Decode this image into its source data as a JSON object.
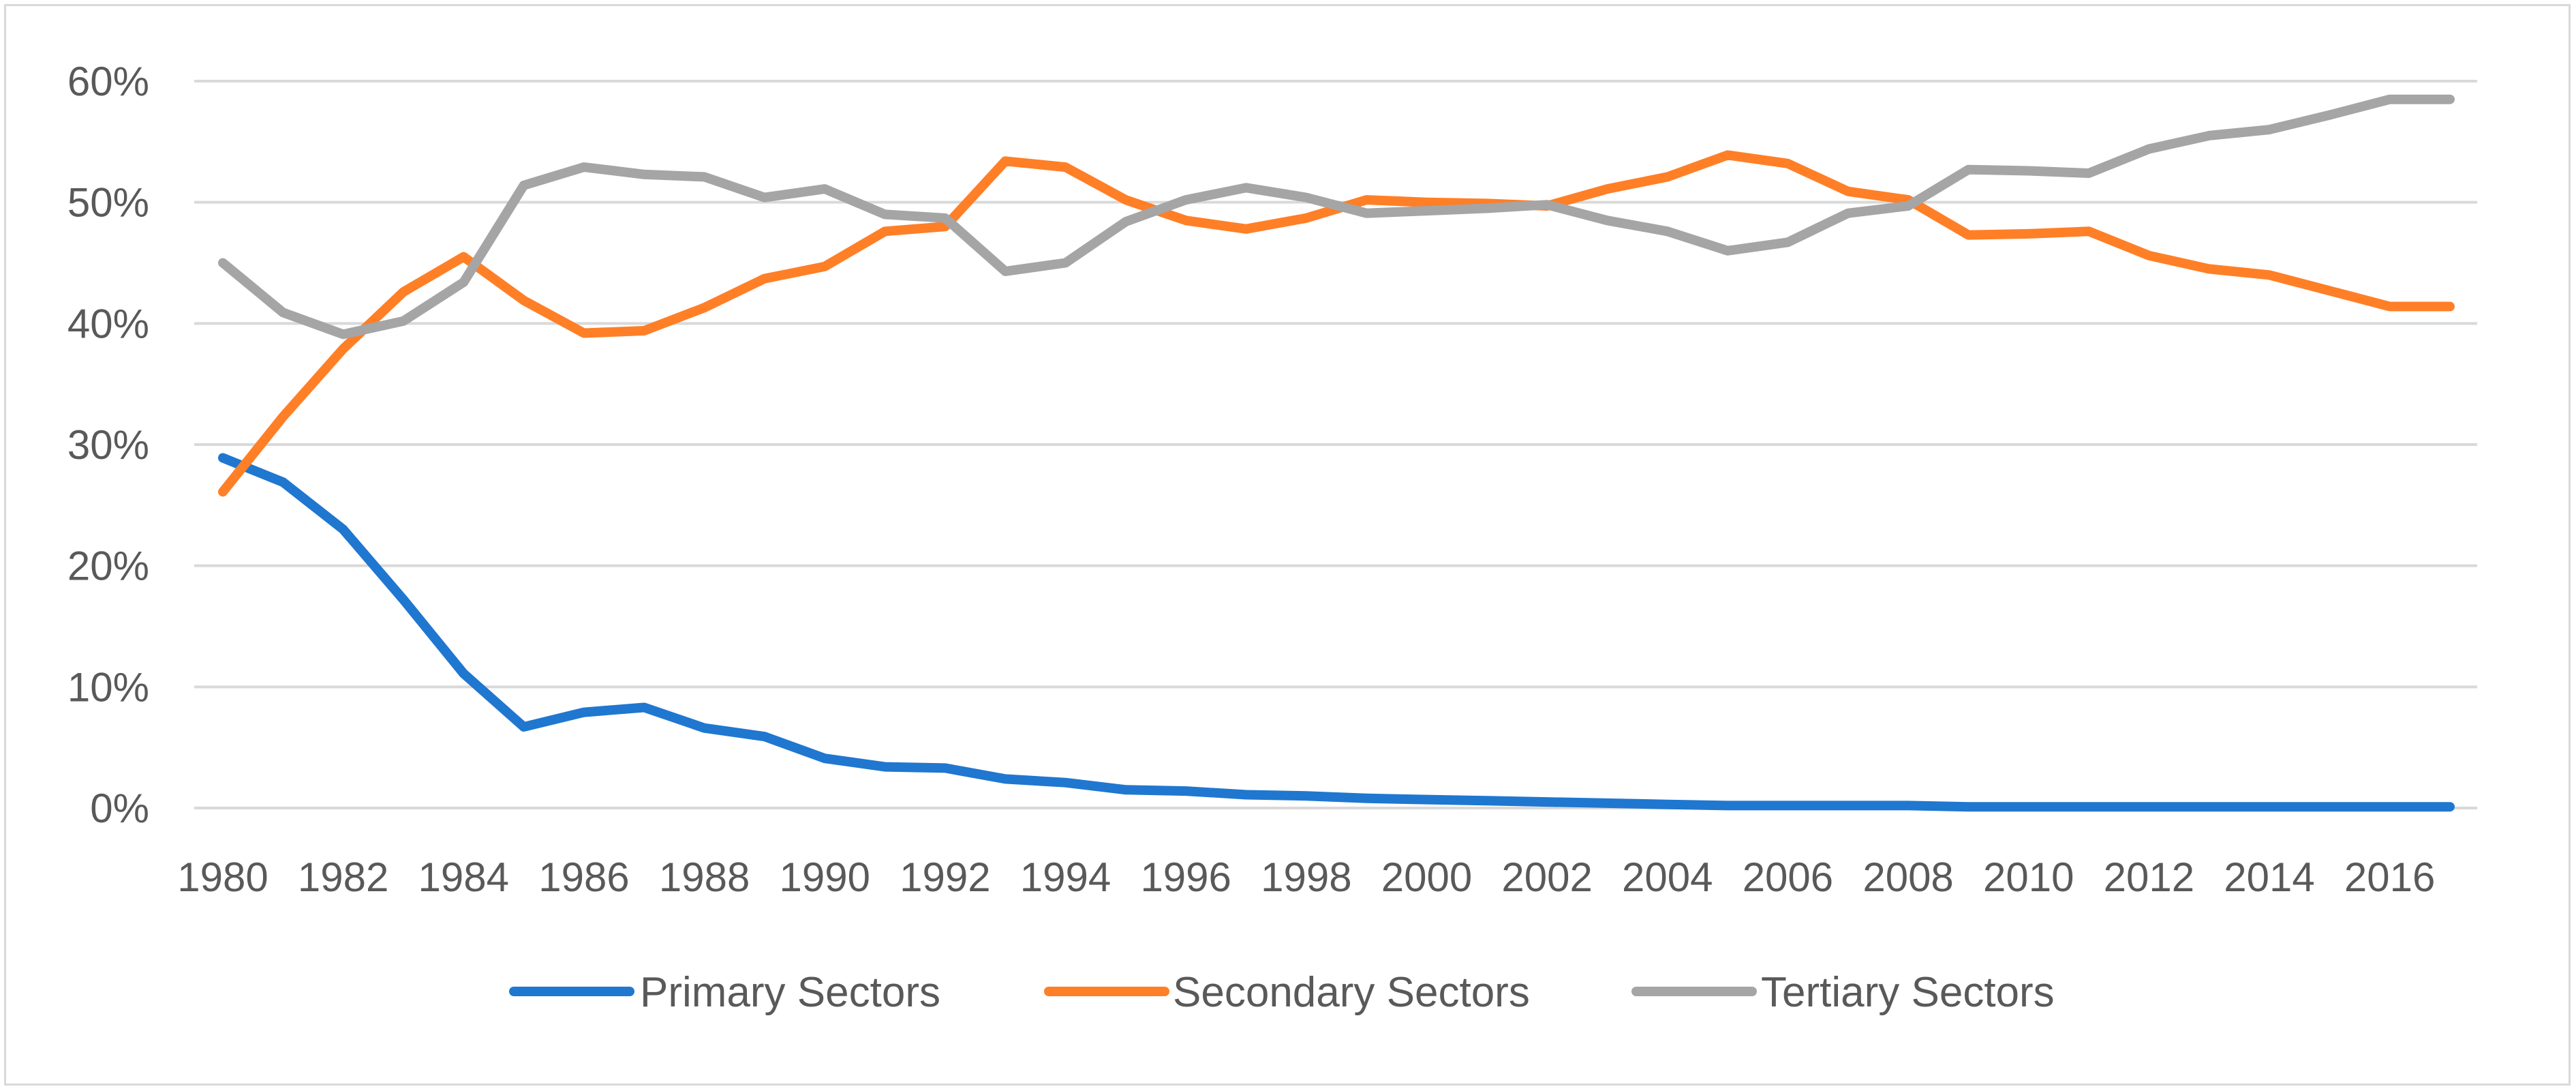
{
  "chart_data": {
    "type": "line",
    "title": "",
    "xlabel": "",
    "ylabel": "",
    "ylim": [
      0,
      0.6
    ],
    "y_ticks": [
      "0%",
      "10%",
      "20%",
      "30%",
      "40%",
      "50%",
      "60%"
    ],
    "y_tick_values": [
      0,
      0.1,
      0.2,
      0.3,
      0.4,
      0.5,
      0.6
    ],
    "x_tick_labels": [
      "1980",
      "1982",
      "1984",
      "1986",
      "1988",
      "1990",
      "1992",
      "1994",
      "1996",
      "1998",
      "2000",
      "2002",
      "2004",
      "2006",
      "2008",
      "2010",
      "2012",
      "2014",
      "2016"
    ],
    "x": [
      1980,
      1981,
      1982,
      1983,
      1984,
      1985,
      1986,
      1987,
      1988,
      1989,
      1990,
      1991,
      1992,
      1993,
      1994,
      1995,
      1996,
      1997,
      1998,
      1999,
      2000,
      2001,
      2002,
      2003,
      2004,
      2005,
      2006,
      2007,
      2008,
      2009,
      2010,
      2011,
      2012,
      2013,
      2014,
      2015,
      2016,
      2017
    ],
    "grid": true,
    "legend_position": "bottom",
    "series": [
      {
        "name": "Primary Sectors",
        "color": "#1f77d0",
        "values": [
          0.289,
          0.269,
          0.23,
          0.172,
          0.111,
          0.067,
          0.079,
          0.083,
          0.066,
          0.059,
          0.041,
          0.034,
          0.033,
          0.024,
          0.021,
          0.015,
          0.014,
          0.011,
          0.01,
          0.008,
          0.007,
          0.006,
          0.005,
          0.004,
          0.003,
          0.002,
          0.002,
          0.002,
          0.002,
          0.001,
          0.001,
          0.001,
          0.001,
          0.001,
          0.001,
          0.001,
          0.001,
          0.001
        ]
      },
      {
        "name": "Secondary Sectors",
        "color": "#ff7f27",
        "values": [
          0.261,
          0.323,
          0.379,
          0.426,
          0.455,
          0.419,
          0.392,
          0.394,
          0.413,
          0.437,
          0.447,
          0.476,
          0.48,
          0.534,
          0.529,
          0.502,
          0.485,
          0.478,
          0.487,
          0.502,
          0.5,
          0.499,
          0.497,
          0.511,
          0.521,
          0.539,
          0.532,
          0.509,
          0.502,
          0.473,
          0.474,
          0.476,
          0.456,
          0.445,
          0.44,
          0.427,
          0.414,
          0.414
        ]
      },
      {
        "name": "Tertiary Sectors",
        "color": "#a5a5a5",
        "values": [
          0.45,
          0.409,
          0.391,
          0.402,
          0.434,
          0.514,
          0.529,
          0.523,
          0.521,
          0.504,
          0.511,
          0.49,
          0.487,
          0.443,
          0.45,
          0.484,
          0.502,
          0.512,
          0.504,
          0.491,
          0.493,
          0.495,
          0.498,
          0.485,
          0.476,
          0.46,
          0.467,
          0.491,
          0.497,
          0.527,
          0.526,
          0.524,
          0.544,
          0.555,
          0.56,
          0.572,
          0.585,
          0.585
        ]
      }
    ]
  }
}
